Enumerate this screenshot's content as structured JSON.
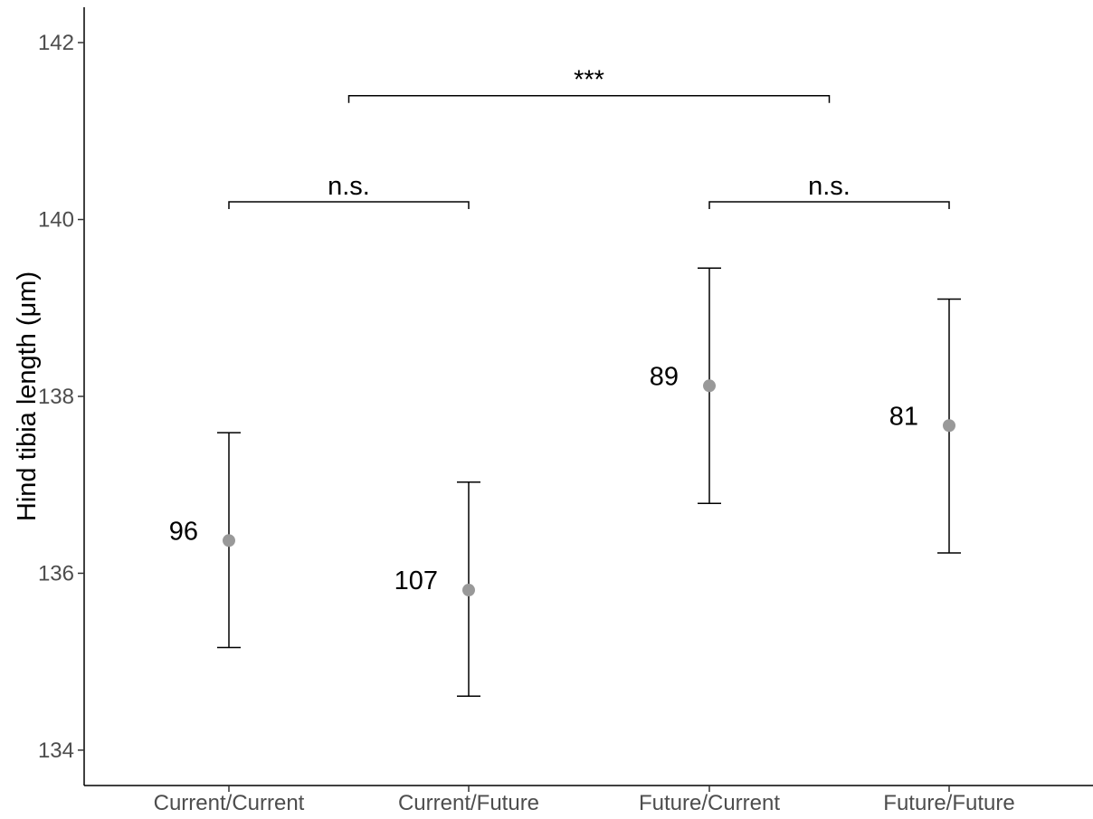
{
  "chart_data": {
    "type": "scatter",
    "ylabel": "Hind tibia length (μm)",
    "xlabel": "",
    "ylim": [
      133.6,
      142.4
    ],
    "yticks": [
      134,
      136,
      138,
      140,
      142
    ],
    "ytick_labels": [
      "134",
      "136",
      "138",
      "140",
      "142"
    ],
    "categories": [
      "Current/Current",
      "Current/Future",
      "Future/Current",
      "Future/Future"
    ],
    "points": [
      {
        "category": "Current/Current",
        "mean": 136.37,
        "lower": 135.16,
        "upper": 137.59,
        "n_label": "96"
      },
      {
        "category": "Current/Future",
        "mean": 135.81,
        "lower": 134.61,
        "upper": 137.03,
        "n_label": "107"
      },
      {
        "category": "Future/Current",
        "mean": 138.12,
        "lower": 136.79,
        "upper": 139.45,
        "n_label": "89"
      },
      {
        "category": "Future/Future",
        "mean": 137.67,
        "lower": 136.23,
        "upper": 139.1,
        "n_label": "81"
      }
    ],
    "significance": [
      {
        "from": "Current/Current",
        "to": "Current/Future",
        "y": 140.2,
        "label": "n.s."
      },
      {
        "from": "Future/Current",
        "to": "Future/Future",
        "y": 140.2,
        "label": "n.s."
      },
      {
        "from": "Current/Current|Current/Future",
        "to": "Future/Current|Future/Future",
        "y": 141.4,
        "label": "***"
      }
    ],
    "grid": false,
    "colors": {
      "point": "#999999",
      "errorbar": "#000000",
      "axis": "#000000"
    }
  }
}
